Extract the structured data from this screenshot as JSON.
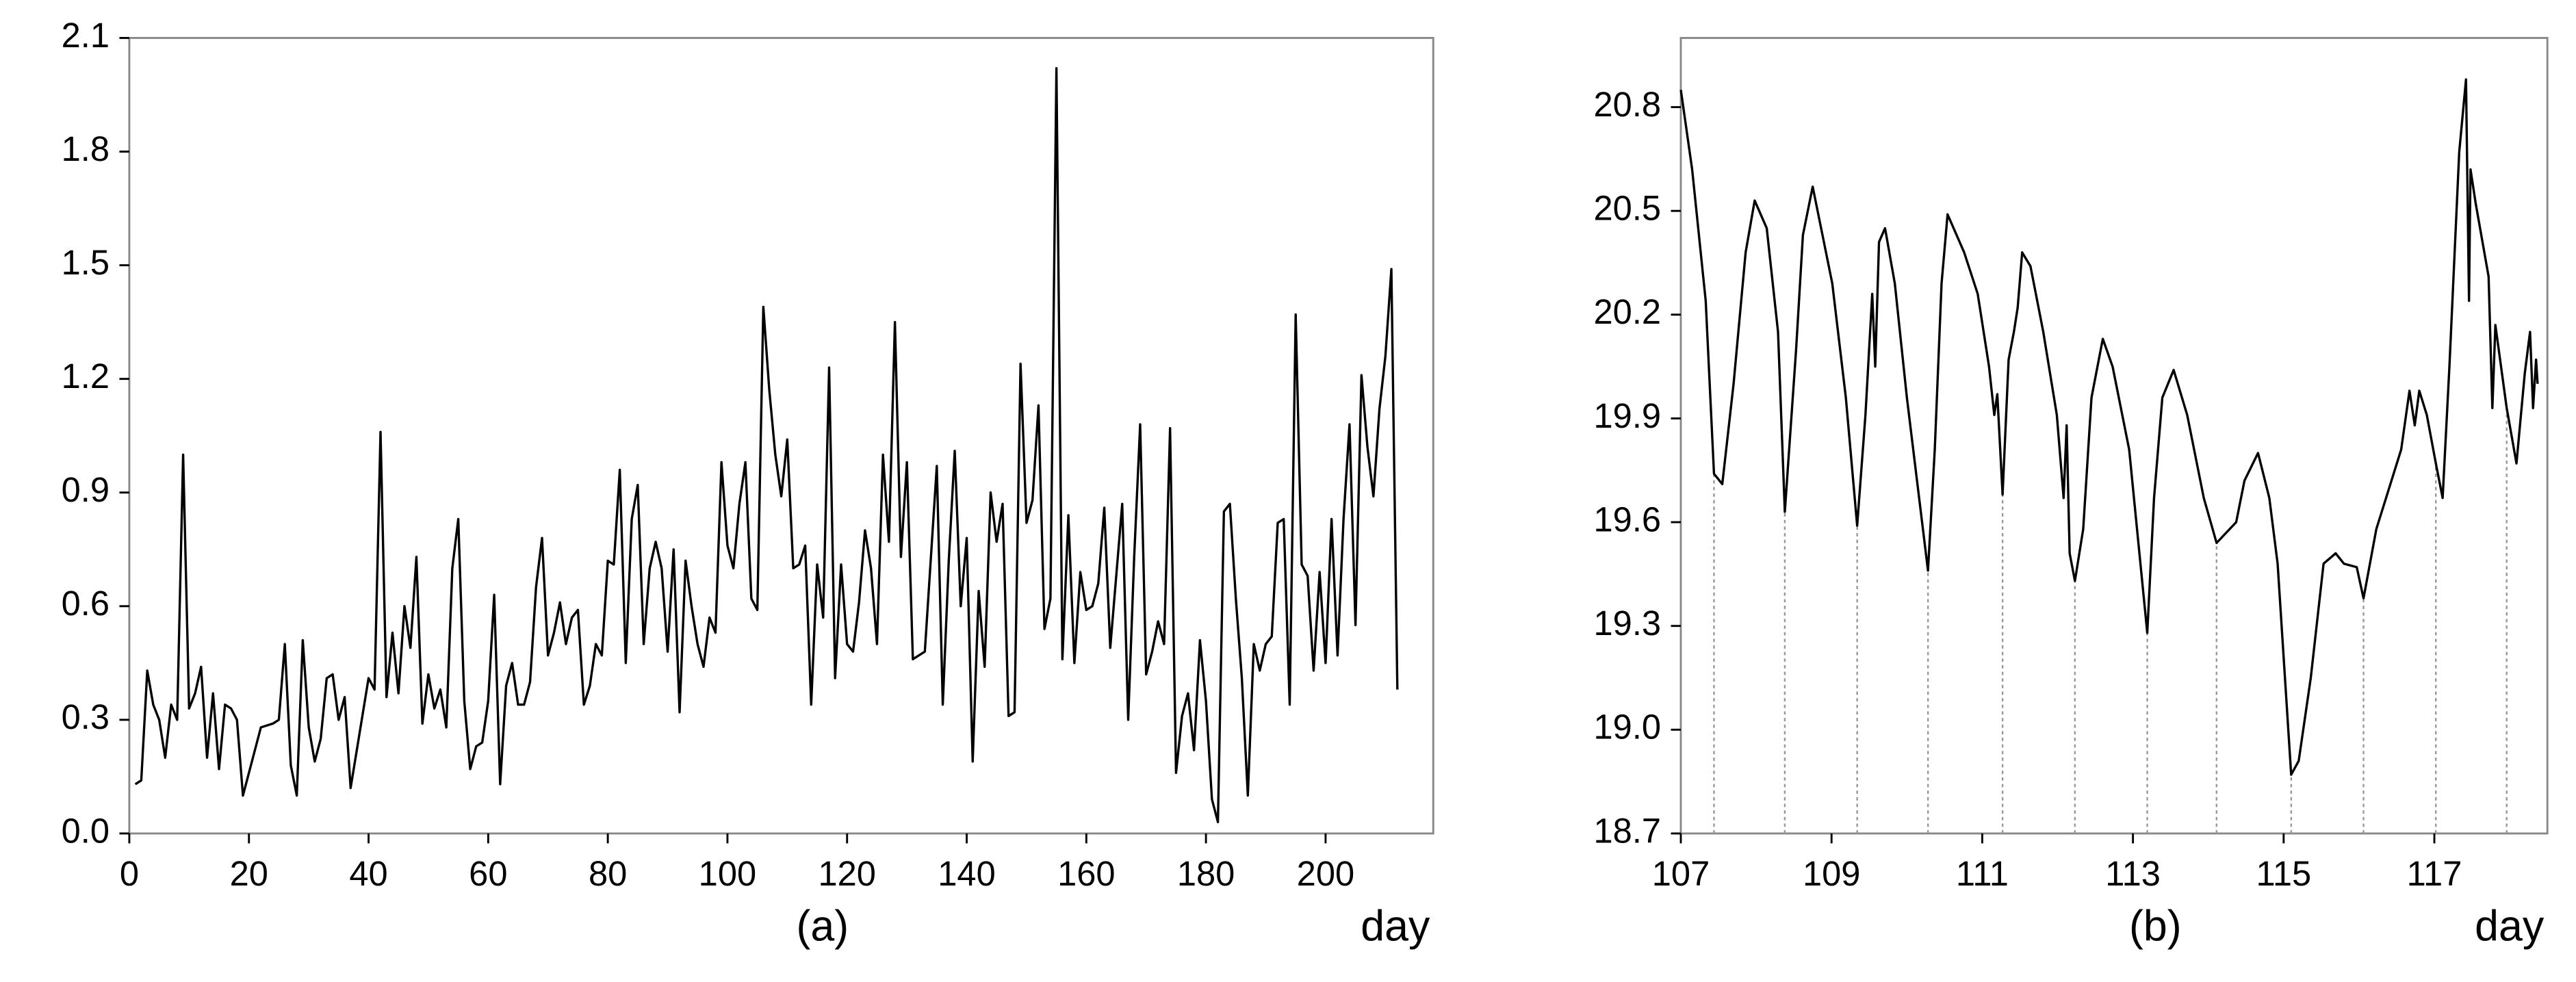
{
  "chart_data": [
    {
      "type": "line",
      "caption": "(a)",
      "x_label": "day",
      "xlim": [
        0,
        218
      ],
      "xticks": [
        0,
        20,
        40,
        60,
        80,
        100,
        120,
        140,
        160,
        180,
        200
      ],
      "ylim": [
        0,
        2.1
      ],
      "yticks": [
        {
          "value": 0,
          "label": "0.0"
        },
        0.3,
        0.6,
        0.9,
        1.2,
        1.5,
        1.8,
        2.1
      ],
      "series": [
        {
          "color": "#000000",
          "x": [
            1,
            2,
            3,
            4,
            5,
            6,
            7,
            8,
            9,
            10,
            11,
            12,
            13,
            14,
            15,
            16,
            17,
            18,
            19,
            22,
            24,
            25,
            26,
            27,
            28,
            29,
            30,
            31,
            32,
            33,
            34,
            35,
            36,
            37,
            40,
            41,
            42,
            43,
            44,
            45,
            46,
            47,
            48,
            49,
            50,
            51,
            52,
            53,
            54,
            55,
            56,
            57,
            58,
            59,
            60,
            61,
            62,
            63,
            64,
            65,
            66,
            67,
            68,
            69,
            70,
            71,
            72,
            73,
            74,
            75,
            76,
            77,
            78,
            79,
            80,
            81,
            82,
            83,
            84,
            85,
            86,
            87,
            88,
            89,
            90,
            91,
            92,
            93,
            94,
            95,
            96,
            97,
            98,
            99,
            100,
            101,
            102,
            103,
            104,
            105,
            106,
            107,
            108,
            109,
            110,
            111,
            112,
            113,
            114,
            115,
            116,
            117,
            118,
            119,
            120,
            121,
            122,
            123,
            124,
            125,
            126,
            127,
            128,
            129,
            130,
            131,
            133,
            135,
            136,
            137,
            138,
            139,
            140,
            141,
            142,
            143,
            144,
            145,
            146,
            147,
            148,
            149,
            150,
            151,
            152,
            153,
            154,
            155,
            156,
            157,
            158,
            159,
            160,
            161,
            162,
            163,
            164,
            165,
            166,
            167,
            168,
            169,
            170,
            171,
            172,
            173,
            174,
            175,
            176,
            177,
            178,
            179,
            180,
            181,
            182,
            183,
            184,
            185,
            186,
            187,
            188,
            189,
            190,
            191,
            192,
            193,
            194,
            195,
            196,
            197,
            198,
            199,
            200,
            201,
            202,
            203,
            204,
            205,
            206,
            207,
            208,
            209,
            210,
            211,
            212
          ],
          "values": [
            0.13,
            0.14,
            0.43,
            0.34,
            0.3,
            0.2,
            0.34,
            0.3,
            1.0,
            0.33,
            0.37,
            0.44,
            0.2,
            0.37,
            0.17,
            0.34,
            0.33,
            0.3,
            0.1,
            0.28,
            0.29,
            0.3,
            0.5,
            0.18,
            0.1,
            0.51,
            0.28,
            0.19,
            0.25,
            0.41,
            0.42,
            0.3,
            0.36,
            0.12,
            0.41,
            0.38,
            1.06,
            0.36,
            0.53,
            0.37,
            0.6,
            0.49,
            0.73,
            0.29,
            0.42,
            0.33,
            0.38,
            0.28,
            0.7,
            0.83,
            0.35,
            0.17,
            0.23,
            0.24,
            0.35,
            0.63,
            0.13,
            0.39,
            0.45,
            0.34,
            0.34,
            0.4,
            0.65,
            0.78,
            0.47,
            0.53,
            0.61,
            0.5,
            0.57,
            0.59,
            0.34,
            0.39,
            0.5,
            0.47,
            0.72,
            0.71,
            0.96,
            0.45,
            0.83,
            0.92,
            0.5,
            0.7,
            0.77,
            0.7,
            0.48,
            0.75,
            0.32,
            0.72,
            0.6,
            0.5,
            0.44,
            0.57,
            0.53,
            0.98,
            0.76,
            0.7,
            0.87,
            0.98,
            0.62,
            0.59,
            1.39,
            1.17,
            1.0,
            0.89,
            1.04,
            0.7,
            0.71,
            0.76,
            0.34,
            0.71,
            0.57,
            1.23,
            0.41,
            0.71,
            0.5,
            0.48,
            0.61,
            0.8,
            0.7,
            0.5,
            1.0,
            0.77,
            1.35,
            0.73,
            0.98,
            0.46,
            0.48,
            0.97,
            0.34,
            0.72,
            1.01,
            0.6,
            0.78,
            0.19,
            0.64,
            0.44,
            0.9,
            0.77,
            0.87,
            0.31,
            0.32,
            1.24,
            0.82,
            0.88,
            1.13,
            0.54,
            0.62,
            2.02,
            0.46,
            0.84,
            0.45,
            0.69,
            0.59,
            0.6,
            0.66,
            0.86,
            0.49,
            0.68,
            0.87,
            0.3,
            0.73,
            1.08,
            0.42,
            0.48,
            0.56,
            0.5,
            1.07,
            0.16,
            0.31,
            0.37,
            0.22,
            0.51,
            0.35,
            0.09,
            0.03,
            0.85,
            0.87,
            0.62,
            0.41,
            0.1,
            0.5,
            0.43,
            0.5,
            0.52,
            0.82,
            0.83,
            0.34,
            1.37,
            0.71,
            0.68,
            0.43,
            0.69,
            0.45,
            0.83,
            0.47,
            0.83,
            1.08,
            0.55,
            1.21,
            1.02,
            0.89,
            1.12,
            1.26,
            1.49,
            0.38
          ]
        }
      ]
    },
    {
      "type": "line",
      "caption": "(b)",
      "x_label": "day",
      "xlim": [
        107,
        118.5
      ],
      "xticks": [
        107,
        109,
        111,
        113,
        115,
        117
      ],
      "ylim": [
        18.7,
        21.0
      ],
      "yticks": [
        18.7,
        {
          "value": 19,
          "label": "19.0"
        },
        19.3,
        19.6,
        19.9,
        20.2,
        20.5,
        20.8
      ],
      "droplines_x": [
        107.44,
        108.38,
        109.34,
        110.28,
        111.27,
        112.23,
        113.19,
        114.11,
        115.1,
        116.06,
        117.02,
        117.96
      ],
      "droplines_y": [
        19.74,
        19.63,
        19.59,
        19.46,
        19.68,
        19.43,
        19.28,
        19.54,
        18.87,
        19.38,
        19.77,
        19.93
      ],
      "series": [
        {
          "color": "#000000",
          "x": [
            107.0,
            107.15,
            107.33,
            107.44,
            107.55,
            107.7,
            107.86,
            107.98,
            108.14,
            108.29,
            108.38,
            108.53,
            108.62,
            108.75,
            108.88,
            109.01,
            109.19,
            109.34,
            109.45,
            109.54,
            109.58,
            109.63,
            109.71,
            109.84,
            110.0,
            110.28,
            110.37,
            110.46,
            110.54,
            110.76,
            110.94,
            111.09,
            111.16,
            111.2,
            111.27,
            111.35,
            111.42,
            111.47,
            111.53,
            111.64,
            111.81,
            111.99,
            112.08,
            112.12,
            112.16,
            112.23,
            112.34,
            112.45,
            112.6,
            112.73,
            112.95,
            113.19,
            113.28,
            113.39,
            113.54,
            113.72,
            113.94,
            114.11,
            114.37,
            114.48,
            114.66,
            114.81,
            114.92,
            115.1,
            115.2,
            115.36,
            115.53,
            115.69,
            115.8,
            115.97,
            116.06,
            116.23,
            116.56,
            116.67,
            116.74,
            116.8,
            116.9,
            117.02,
            117.11,
            117.2,
            117.33,
            117.42,
            117.46,
            117.48,
            117.55,
            117.72,
            117.77,
            117.81,
            117.96,
            118.09,
            118.2,
            118.27,
            118.31,
            118.35,
            118.37
          ],
          "values": [
            20.85,
            20.62,
            20.24,
            19.74,
            19.71,
            20.0,
            20.38,
            20.53,
            20.45,
            20.15,
            19.63,
            20.1,
            20.43,
            20.57,
            20.43,
            20.29,
            19.96,
            19.59,
            19.91,
            20.26,
            20.05,
            20.41,
            20.45,
            20.29,
            19.96,
            19.46,
            19.81,
            20.29,
            20.49,
            20.38,
            20.26,
            20.05,
            19.91,
            19.97,
            19.68,
            20.07,
            20.15,
            20.22,
            20.38,
            20.34,
            20.15,
            19.91,
            19.67,
            19.88,
            19.51,
            19.43,
            19.58,
            19.96,
            20.13,
            20.05,
            19.81,
            19.28,
            19.67,
            19.96,
            20.04,
            19.91,
            19.67,
            19.54,
            19.6,
            19.72,
            19.8,
            19.67,
            19.48,
            18.87,
            18.91,
            19.15,
            19.48,
            19.51,
            19.48,
            19.47,
            19.38,
            19.58,
            19.81,
            19.98,
            19.88,
            19.98,
            19.91,
            19.77,
            19.67,
            20.05,
            20.67,
            20.88,
            20.24,
            20.62,
            20.52,
            20.31,
            19.93,
            20.17,
            19.93,
            19.77,
            20.03,
            20.15,
            19.93,
            20.07,
            20.0
          ]
        }
      ]
    }
  ]
}
